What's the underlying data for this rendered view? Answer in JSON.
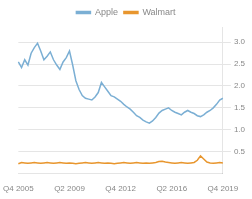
{
  "chart_data": {
    "type": "line",
    "categories": [
      "Q4 2005",
      null,
      null,
      null,
      null,
      null,
      null,
      null,
      null,
      null,
      null,
      null,
      null,
      null,
      null,
      null,
      "Q2 2009",
      null,
      null,
      null,
      null,
      null,
      null,
      null,
      null,
      null,
      null,
      null,
      null,
      null,
      null,
      null,
      "Q4 2012",
      null,
      null,
      null,
      null,
      null,
      null,
      null,
      null,
      null,
      null,
      null,
      null,
      null,
      null,
      null,
      "Q2 2016",
      null,
      null,
      null,
      null,
      null,
      null,
      null,
      null,
      null,
      null,
      null,
      null,
      null,
      null,
      null,
      "Q4 2019"
    ],
    "series": [
      {
        "name": "Apple",
        "color": "#7BAFD4",
        "values": [
          2.55,
          2.42,
          2.6,
          2.48,
          2.75,
          2.88,
          2.98,
          2.8,
          2.6,
          2.68,
          2.78,
          2.6,
          2.48,
          2.38,
          2.55,
          2.65,
          2.8,
          2.48,
          2.12,
          1.92,
          1.78,
          1.72,
          1.7,
          1.68,
          1.75,
          1.85,
          2.08,
          1.98,
          1.88,
          1.78,
          1.75,
          1.7,
          1.65,
          1.58,
          1.52,
          1.47,
          1.4,
          1.32,
          1.28,
          1.22,
          1.18,
          1.15,
          1.2,
          1.28,
          1.38,
          1.44,
          1.47,
          1.5,
          1.44,
          1.4,
          1.37,
          1.34,
          1.4,
          1.44,
          1.4,
          1.37,
          1.32,
          1.3,
          1.34,
          1.4,
          1.44,
          1.5,
          1.58,
          1.68,
          1.72
        ]
      },
      {
        "name": "Walmart",
        "color": "#E8962E",
        "values": [
          0.22,
          0.25,
          0.24,
          0.23,
          0.24,
          0.25,
          0.24,
          0.23,
          0.24,
          0.25,
          0.24,
          0.23,
          0.24,
          0.25,
          0.24,
          0.23,
          0.24,
          0.23,
          0.22,
          0.23,
          0.24,
          0.25,
          0.24,
          0.23,
          0.24,
          0.25,
          0.24,
          0.23,
          0.24,
          0.23,
          0.22,
          0.23,
          0.24,
          0.25,
          0.24,
          0.23,
          0.24,
          0.25,
          0.24,
          0.23,
          0.24,
          0.23,
          0.24,
          0.25,
          0.27,
          0.28,
          0.26,
          0.25,
          0.24,
          0.23,
          0.24,
          0.25,
          0.24,
          0.23,
          0.24,
          0.25,
          0.3,
          0.4,
          0.33,
          0.26,
          0.24,
          0.23,
          0.24,
          0.25,
          0.24
        ]
      }
    ],
    "ylim": [
      0.0,
      3.35
    ],
    "yticks": [
      0.5,
      {
        "value": 1,
        "label": "1.0"
      },
      1.5,
      {
        "value": 2,
        "label": "2.0"
      },
      2.5,
      {
        "value": 3,
        "label": "3.0"
      }
    ],
    "grid": true,
    "legend": "top"
  }
}
